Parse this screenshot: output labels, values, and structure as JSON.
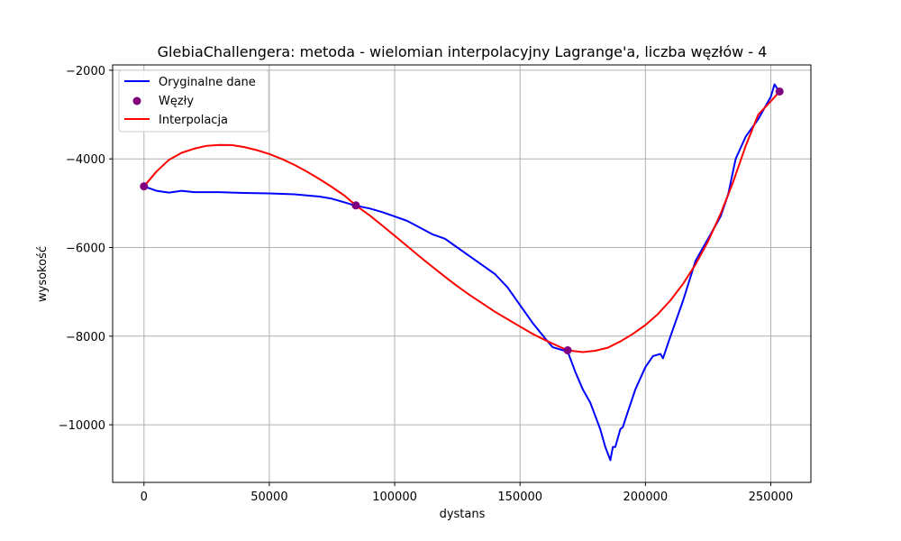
{
  "chart_data": {
    "type": "line",
    "title": "GlebiaChallengera: metoda - wielomian interpolacyjny Lagrange'a, liczba węzłów - 4",
    "xlabel": "dystans",
    "ylabel": "wysokość",
    "xlim": [
      -12500,
      266000
    ],
    "ylim": [
      -11300,
      -1880
    ],
    "grid": true,
    "legend_position": "top-left",
    "x_ticks": [
      0,
      50000,
      100000,
      150000,
      200000,
      250000
    ],
    "x_tick_labels": [
      "0",
      "50000",
      "100000",
      "150000",
      "200000",
      "250000"
    ],
    "y_ticks": [
      -2000,
      -4000,
      -6000,
      -8000,
      -10000
    ],
    "y_tick_labels": [
      "−2000",
      "−4000",
      "−6000",
      "−8000",
      "−10000"
    ],
    "series": [
      {
        "name": "Oryginalne dane",
        "kind": "line",
        "color": "#0000ff",
        "x": [
          0,
          5000,
          10000,
          15000,
          20000,
          30000,
          40000,
          50000,
          60000,
          70000,
          75000,
          80000,
          84000,
          90000,
          95000,
          100000,
          105000,
          110000,
          115000,
          120000,
          125000,
          130000,
          135000,
          140000,
          145000,
          150000,
          155000,
          160000,
          163000,
          166000,
          169000,
          172000,
          175000,
          178000,
          180000,
          182000,
          184000,
          186000,
          187000,
          188000,
          190000,
          191000,
          193000,
          196000,
          200000,
          203000,
          206000,
          207000,
          210000,
          215000,
          220000,
          225000,
          230000,
          233000,
          236000,
          240000,
          245000,
          250000,
          251500,
          253000,
          254000
        ],
        "y": [
          -4620,
          -4720,
          -4760,
          -4720,
          -4750,
          -4750,
          -4770,
          -4780,
          -4800,
          -4850,
          -4900,
          -4980,
          -5050,
          -5120,
          -5200,
          -5300,
          -5400,
          -5550,
          -5700,
          -5800,
          -6000,
          -6200,
          -6400,
          -6600,
          -6900,
          -7300,
          -7700,
          -8050,
          -8250,
          -8300,
          -8350,
          -8800,
          -9200,
          -9500,
          -9800,
          -10100,
          -10500,
          -10800,
          -10500,
          -10500,
          -10100,
          -10050,
          -9700,
          -9200,
          -8700,
          -8450,
          -8400,
          -8500,
          -8000,
          -7200,
          -6300,
          -5800,
          -5300,
          -4800,
          -4000,
          -3500,
          -3100,
          -2600,
          -2320,
          -2450,
          -2500
        ]
      },
      {
        "name": "Węzły",
        "kind": "scatter",
        "color": "#800080",
        "x": [
          0,
          84500,
          169000,
          253500
        ],
        "y": [
          -4620,
          -5050,
          -8320,
          -2480
        ]
      },
      {
        "name": "Interpolacja",
        "kind": "line",
        "color": "#ff0000",
        "x": [
          0,
          5000,
          10000,
          15000,
          20000,
          25000,
          30000,
          35000,
          40000,
          45000,
          50000,
          55000,
          60000,
          65000,
          70000,
          75000,
          80000,
          84500,
          90000,
          95000,
          100000,
          105000,
          110000,
          115000,
          120000,
          125000,
          130000,
          135000,
          140000,
          145000,
          150000,
          155000,
          160000,
          165000,
          169000,
          175000,
          180000,
          185000,
          190000,
          195000,
          200000,
          205000,
          210000,
          215000,
          220000,
          225000,
          230000,
          235000,
          240000,
          245000,
          250000,
          253500
        ],
        "y": [
          -4620,
          -4284,
          -4020,
          -3863,
          -3770,
          -3706,
          -3686,
          -3689,
          -3733,
          -3803,
          -3890,
          -4003,
          -4136,
          -4288,
          -4455,
          -4637,
          -4830,
          -5050,
          -5274,
          -5502,
          -5736,
          -5970,
          -6205,
          -6433,
          -6657,
          -6873,
          -7074,
          -7263,
          -7450,
          -7618,
          -7785,
          -7950,
          -8090,
          -8220,
          -8320,
          -8360,
          -8330,
          -8260,
          -8120,
          -7950,
          -7750,
          -7500,
          -7190,
          -6820,
          -6380,
          -5860,
          -5240,
          -4520,
          -3710,
          -3000,
          -2700,
          -2480
        ]
      }
    ]
  }
}
